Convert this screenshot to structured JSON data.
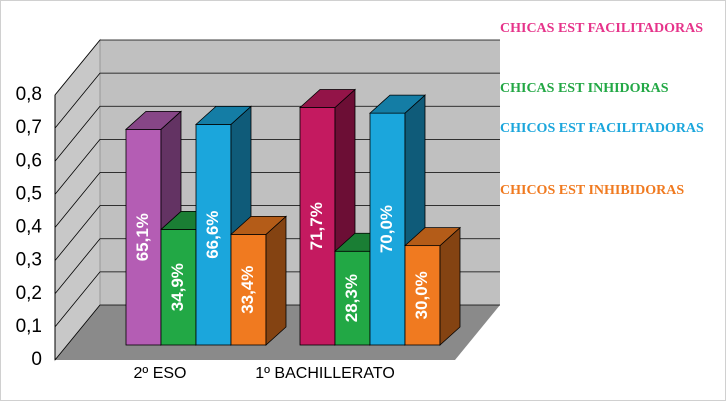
{
  "chart_data": {
    "type": "bar3d",
    "categories": [
      "2º ESO",
      "1º BACHILLERATO"
    ],
    "series": [
      {
        "name": "CHICAS EST FACILITADORAS",
        "color": "#e6338a",
        "colors": [
          "#b45db4",
          "#c41a60"
        ],
        "values": [
          0.651,
          0.717
        ],
        "value_labels": [
          "65,1%",
          "71,7%"
        ]
      },
      {
        "name": "CHICAS EST INHIDORAS",
        "color": "#22a845",
        "values": [
          0.349,
          0.283
        ],
        "value_labels": [
          "34,9%",
          "28,3%"
        ]
      },
      {
        "name": "CHICOS EST FACILITADORAS",
        "color": "#1ba6dc",
        "values": [
          0.666,
          0.7
        ],
        "value_labels": [
          "66,6%",
          "70,0%"
        ]
      },
      {
        "name": "CHICOS EST INHIBIDORAS",
        "color": "#f07a20",
        "values": [
          0.334,
          0.3
        ],
        "value_labels": [
          "33,4%",
          "30,0%"
        ]
      }
    ],
    "ylim": [
      0,
      0.8
    ],
    "yticks": [
      0,
      {
        "value": 0.1,
        "label": "0,1"
      },
      {
        "value": 0.2,
        "label": "0,2"
      },
      {
        "value": 0.3,
        "label": "0,3"
      },
      {
        "value": 0.4,
        "label": "0,4"
      },
      {
        "value": 0.5,
        "label": "0,5"
      },
      {
        "value": 0.6,
        "label": "0,6"
      },
      {
        "value": 0.7,
        "label": "0,7"
      },
      {
        "value": 0.8,
        "label": "0,8"
      }
    ],
    "grid": true
  }
}
